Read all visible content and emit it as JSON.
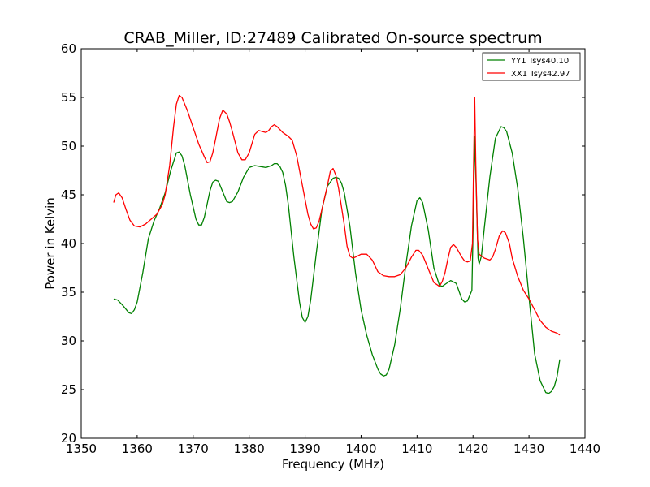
{
  "chart_data": {
    "type": "line",
    "title": "CRAB_Miller, ID:27489 Calibrated On-source spectrum",
    "xlabel": "Frequency (MHz)",
    "ylabel": "Power in Kelvin",
    "xlim": [
      1350,
      1440
    ],
    "ylim": [
      20,
      60
    ],
    "xticks": [
      1350,
      1360,
      1370,
      1380,
      1390,
      1400,
      1410,
      1420,
      1430,
      1440
    ],
    "yticks": [
      20,
      25,
      30,
      35,
      40,
      45,
      50,
      55,
      60
    ],
    "grid": false,
    "legend_position": "top-right",
    "series": [
      {
        "name": "YY1 Tsys40.10",
        "color": "#008000",
        "points": [
          [
            1355.8,
            34.3
          ],
          [
            1356.5,
            34.2
          ],
          [
            1357.5,
            33.6
          ],
          [
            1358.5,
            32.9
          ],
          [
            1359.0,
            32.8
          ],
          [
            1359.5,
            33.2
          ],
          [
            1360.0,
            34.0
          ],
          [
            1361.0,
            37.0
          ],
          [
            1362.0,
            40.5
          ],
          [
            1363.0,
            42.3
          ],
          [
            1364.0,
            43.6
          ],
          [
            1365.0,
            45.2
          ],
          [
            1366.0,
            47.5
          ],
          [
            1367.0,
            49.3
          ],
          [
            1367.5,
            49.4
          ],
          [
            1368.0,
            49.0
          ],
          [
            1368.5,
            48.0
          ],
          [
            1369.5,
            45.0
          ],
          [
            1370.5,
            42.5
          ],
          [
            1371.0,
            41.9
          ],
          [
            1371.5,
            41.9
          ],
          [
            1372.0,
            42.7
          ],
          [
            1373.0,
            45.4
          ],
          [
            1373.5,
            46.3
          ],
          [
            1374.0,
            46.5
          ],
          [
            1374.5,
            46.4
          ],
          [
            1375.0,
            45.7
          ],
          [
            1376.0,
            44.3
          ],
          [
            1376.5,
            44.2
          ],
          [
            1377.0,
            44.3
          ],
          [
            1378.0,
            45.3
          ],
          [
            1379.0,
            46.8
          ],
          [
            1380.0,
            47.8
          ],
          [
            1381.0,
            48.0
          ],
          [
            1382.0,
            47.9
          ],
          [
            1383.0,
            47.8
          ],
          [
            1384.0,
            48.0
          ],
          [
            1384.5,
            48.2
          ],
          [
            1385.0,
            48.2
          ],
          [
            1385.5,
            47.9
          ],
          [
            1386.0,
            47.3
          ],
          [
            1386.5,
            46.0
          ],
          [
            1387.0,
            44.0
          ],
          [
            1388.0,
            38.6
          ],
          [
            1389.0,
            34.0
          ],
          [
            1389.5,
            32.4
          ],
          [
            1390.0,
            31.9
          ],
          [
            1390.5,
            32.5
          ],
          [
            1391.0,
            34.2
          ],
          [
            1392.0,
            39.0
          ],
          [
            1393.0,
            43.5
          ],
          [
            1394.0,
            45.9
          ],
          [
            1395.0,
            46.7
          ],
          [
            1395.5,
            46.8
          ],
          [
            1396.0,
            46.7
          ],
          [
            1396.5,
            46.2
          ],
          [
            1397.0,
            45.2
          ],
          [
            1398.0,
            41.8
          ],
          [
            1399.0,
            37.0
          ],
          [
            1400.0,
            33.2
          ],
          [
            1401.0,
            30.6
          ],
          [
            1402.0,
            28.6
          ],
          [
            1403.0,
            27.1
          ],
          [
            1403.5,
            26.6
          ],
          [
            1404.0,
            26.4
          ],
          [
            1404.5,
            26.5
          ],
          [
            1405.0,
            27.1
          ],
          [
            1406.0,
            29.6
          ],
          [
            1407.0,
            33.3
          ],
          [
            1408.0,
            37.8
          ],
          [
            1409.0,
            41.8
          ],
          [
            1410.0,
            44.4
          ],
          [
            1410.5,
            44.7
          ],
          [
            1411.0,
            44.2
          ],
          [
            1412.0,
            41.4
          ],
          [
            1413.0,
            37.5
          ],
          [
            1414.0,
            35.7
          ],
          [
            1414.5,
            35.6
          ],
          [
            1415.0,
            35.8
          ],
          [
            1416.0,
            36.2
          ],
          [
            1417.0,
            35.9
          ],
          [
            1418.0,
            34.3
          ],
          [
            1418.5,
            34.0
          ],
          [
            1419.0,
            34.1
          ],
          [
            1419.8,
            35.2
          ],
          [
            1420.1,
            44.0
          ],
          [
            1420.3,
            51.0
          ],
          [
            1420.6,
            45.0
          ],
          [
            1420.9,
            38.5
          ],
          [
            1421.1,
            37.9
          ],
          [
            1421.5,
            38.7
          ],
          [
            1422.0,
            41.5
          ],
          [
            1423.0,
            46.8
          ],
          [
            1424.0,
            50.8
          ],
          [
            1425.0,
            52.0
          ],
          [
            1425.5,
            51.9
          ],
          [
            1426.0,
            51.5
          ],
          [
            1427.0,
            49.3
          ],
          [
            1428.0,
            45.6
          ],
          [
            1429.0,
            40.5
          ],
          [
            1430.0,
            34.5
          ],
          [
            1431.0,
            28.7
          ],
          [
            1432.0,
            25.9
          ],
          [
            1433.0,
            24.7
          ],
          [
            1433.5,
            24.6
          ],
          [
            1434.0,
            24.8
          ],
          [
            1434.5,
            25.3
          ],
          [
            1435.0,
            26.3
          ],
          [
            1435.5,
            28.1
          ]
        ]
      },
      {
        "name": "XX1 Tsys42.97",
        "color": "#ff0000",
        "points": [
          [
            1355.8,
            44.2
          ],
          [
            1356.2,
            45.0
          ],
          [
            1356.7,
            45.2
          ],
          [
            1357.3,
            44.7
          ],
          [
            1358.0,
            43.5
          ],
          [
            1358.7,
            42.4
          ],
          [
            1359.5,
            41.8
          ],
          [
            1360.5,
            41.7
          ],
          [
            1361.5,
            42.0
          ],
          [
            1362.5,
            42.5
          ],
          [
            1363.5,
            43.0
          ],
          [
            1364.5,
            44.0
          ],
          [
            1365.0,
            45.0
          ],
          [
            1365.8,
            48.0
          ],
          [
            1366.5,
            52.0
          ],
          [
            1367.0,
            54.3
          ],
          [
            1367.5,
            55.2
          ],
          [
            1368.0,
            55.0
          ],
          [
            1369.0,
            53.6
          ],
          [
            1370.0,
            51.9
          ],
          [
            1371.0,
            50.2
          ],
          [
            1372.0,
            48.9
          ],
          [
            1372.5,
            48.3
          ],
          [
            1373.0,
            48.4
          ],
          [
            1373.5,
            49.3
          ],
          [
            1374.0,
            50.7
          ],
          [
            1374.7,
            52.8
          ],
          [
            1375.3,
            53.7
          ],
          [
            1376.0,
            53.3
          ],
          [
            1376.5,
            52.5
          ],
          [
            1377.0,
            51.5
          ],
          [
            1378.0,
            49.3
          ],
          [
            1378.7,
            48.6
          ],
          [
            1379.3,
            48.6
          ],
          [
            1380.0,
            49.3
          ],
          [
            1381.0,
            51.2
          ],
          [
            1381.7,
            51.6
          ],
          [
            1382.3,
            51.5
          ],
          [
            1383.0,
            51.4
          ],
          [
            1383.5,
            51.6
          ],
          [
            1384.0,
            52.0
          ],
          [
            1384.5,
            52.2
          ],
          [
            1385.0,
            52.0
          ],
          [
            1386.0,
            51.4
          ],
          [
            1387.0,
            51.0
          ],
          [
            1387.7,
            50.6
          ],
          [
            1388.5,
            49.0
          ],
          [
            1389.5,
            46.0
          ],
          [
            1390.5,
            43.0
          ],
          [
            1391.0,
            42.0
          ],
          [
            1391.5,
            41.5
          ],
          [
            1392.0,
            41.6
          ],
          [
            1392.5,
            42.3
          ],
          [
            1393.0,
            43.5
          ],
          [
            1394.0,
            46.0
          ],
          [
            1394.5,
            47.4
          ],
          [
            1395.0,
            47.7
          ],
          [
            1395.5,
            47.0
          ],
          [
            1396.0,
            45.6
          ],
          [
            1397.0,
            41.9
          ],
          [
            1397.5,
            39.7
          ],
          [
            1398.0,
            38.7
          ],
          [
            1398.5,
            38.5
          ],
          [
            1399.0,
            38.6
          ],
          [
            1400.0,
            38.9
          ],
          [
            1401.0,
            38.9
          ],
          [
            1402.0,
            38.3
          ],
          [
            1402.5,
            37.7
          ],
          [
            1403.0,
            37.1
          ],
          [
            1404.0,
            36.7
          ],
          [
            1405.0,
            36.6
          ],
          [
            1406.0,
            36.6
          ],
          [
            1407.0,
            36.8
          ],
          [
            1408.0,
            37.5
          ],
          [
            1409.0,
            38.6
          ],
          [
            1409.8,
            39.3
          ],
          [
            1410.3,
            39.3
          ],
          [
            1411.0,
            38.8
          ],
          [
            1412.0,
            37.4
          ],
          [
            1413.0,
            36.0
          ],
          [
            1414.0,
            35.6
          ],
          [
            1414.5,
            36.1
          ],
          [
            1415.0,
            37.0
          ],
          [
            1415.5,
            38.4
          ],
          [
            1416.0,
            39.6
          ],
          [
            1416.5,
            39.9
          ],
          [
            1417.0,
            39.6
          ],
          [
            1418.0,
            38.6
          ],
          [
            1418.5,
            38.2
          ],
          [
            1419.0,
            38.1
          ],
          [
            1419.5,
            38.2
          ],
          [
            1419.9,
            40.0
          ],
          [
            1420.1,
            48.0
          ],
          [
            1420.3,
            55.0
          ],
          [
            1420.5,
            48.0
          ],
          [
            1420.8,
            40.5
          ],
          [
            1421.1,
            38.9
          ],
          [
            1422.0,
            38.5
          ],
          [
            1423.0,
            38.3
          ],
          [
            1423.5,
            38.6
          ],
          [
            1424.0,
            39.4
          ],
          [
            1424.7,
            40.8
          ],
          [
            1425.3,
            41.3
          ],
          [
            1425.8,
            41.1
          ],
          [
            1426.5,
            40.0
          ],
          [
            1427.0,
            38.5
          ],
          [
            1428.0,
            36.6
          ],
          [
            1429.0,
            35.2
          ],
          [
            1430.0,
            34.3
          ],
          [
            1431.0,
            33.2
          ],
          [
            1432.0,
            32.1
          ],
          [
            1433.0,
            31.4
          ],
          [
            1434.0,
            31.0
          ],
          [
            1435.0,
            30.8
          ],
          [
            1435.5,
            30.6
          ]
        ]
      }
    ]
  }
}
